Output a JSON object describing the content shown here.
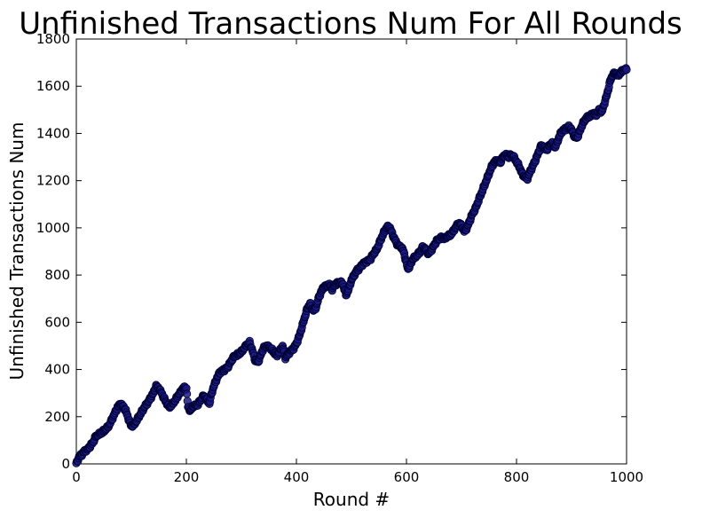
{
  "chart_data": {
    "type": "scatter",
    "title": "Unfinished Transactions Num For All Rounds",
    "xlabel": "Round #",
    "ylabel": "Unfinished Transactions Num",
    "xlim": [
      0,
      1000
    ],
    "ylim": [
      0,
      1800
    ],
    "xticks": [
      0,
      200,
      400,
      600,
      800,
      1000
    ],
    "yticks": [
      0,
      200,
      400,
      600,
      800,
      1000,
      1200,
      1400,
      1600,
      1800
    ],
    "grid": false,
    "marker_color": "#1a1a80",
    "marker_edge_color": "#000033",
    "series": [
      {
        "points": [
          [
            0,
            0
          ],
          [
            5,
            30
          ],
          [
            10,
            40
          ],
          [
            15,
            55
          ],
          [
            20,
            60
          ],
          [
            25,
            75
          ],
          [
            30,
            90
          ],
          [
            35,
            115
          ],
          [
            40,
            125
          ],
          [
            45,
            130
          ],
          [
            50,
            140
          ],
          [
            55,
            150
          ],
          [
            60,
            165
          ],
          [
            65,
            190
          ],
          [
            70,
            215
          ],
          [
            75,
            240
          ],
          [
            80,
            255
          ],
          [
            85,
            245
          ],
          [
            90,
            225
          ],
          [
            95,
            190
          ],
          [
            100,
            160
          ],
          [
            105,
            165
          ],
          [
            110,
            185
          ],
          [
            115,
            205
          ],
          [
            120,
            225
          ],
          [
            125,
            245
          ],
          [
            130,
            260
          ],
          [
            135,
            280
          ],
          [
            140,
            300
          ],
          [
            145,
            330
          ],
          [
            150,
            320
          ],
          [
            155,
            300
          ],
          [
            160,
            275
          ],
          [
            165,
            255
          ],
          [
            170,
            240
          ],
          [
            175,
            255
          ],
          [
            180,
            270
          ],
          [
            185,
            290
          ],
          [
            190,
            305
          ],
          [
            195,
            325
          ],
          [
            200,
            320
          ],
          [
            203,
            240
          ],
          [
            208,
            225
          ],
          [
            212,
            245
          ],
          [
            220,
            250
          ],
          [
            226,
            270
          ],
          [
            232,
            290
          ],
          [
            238,
            270
          ],
          [
            242,
            255
          ],
          [
            246,
            300
          ],
          [
            250,
            330
          ],
          [
            255,
            360
          ],
          [
            260,
            385
          ],
          [
            265,
            395
          ],
          [
            270,
            400
          ],
          [
            275,
            410
          ],
          [
            280,
            430
          ],
          [
            285,
            450
          ],
          [
            290,
            460
          ],
          [
            295,
            465
          ],
          [
            300,
            475
          ],
          [
            305,
            490
          ],
          [
            310,
            505
          ],
          [
            315,
            515
          ],
          [
            320,
            480
          ],
          [
            325,
            440
          ],
          [
            330,
            430
          ],
          [
            335,
            460
          ],
          [
            340,
            490
          ],
          [
            345,
            500
          ],
          [
            350,
            495
          ],
          [
            355,
            485
          ],
          [
            360,
            470
          ],
          [
            365,
            460
          ],
          [
            370,
            480
          ],
          [
            375,
            500
          ],
          [
            380,
            450
          ],
          [
            385,
            465
          ],
          [
            390,
            480
          ],
          [
            395,
            490
          ],
          [
            400,
            510
          ],
          [
            405,
            540
          ],
          [
            410,
            580
          ],
          [
            415,
            620
          ],
          [
            420,
            660
          ],
          [
            425,
            680
          ],
          [
            430,
            650
          ],
          [
            435,
            660
          ],
          [
            440,
            700
          ],
          [
            445,
            730
          ],
          [
            450,
            750
          ],
          [
            455,
            755
          ],
          [
            460,
            760
          ],
          [
            465,
            740
          ],
          [
            470,
            760
          ],
          [
            475,
            765
          ],
          [
            480,
            770
          ],
          [
            485,
            760
          ],
          [
            490,
            715
          ],
          [
            495,
            740
          ],
          [
            500,
            780
          ],
          [
            505,
            800
          ],
          [
            510,
            820
          ],
          [
            515,
            830
          ],
          [
            520,
            845
          ],
          [
            525,
            855
          ],
          [
            530,
            860
          ],
          [
            535,
            870
          ],
          [
            540,
            890
          ],
          [
            545,
            905
          ],
          [
            550,
            930
          ],
          [
            555,
            960
          ],
          [
            560,
            985
          ],
          [
            565,
            1005
          ],
          [
            570,
            1000
          ],
          [
            575,
            970
          ],
          [
            580,
            945
          ],
          [
            585,
            925
          ],
          [
            590,
            920
          ],
          [
            595,
            900
          ],
          [
            600,
            850
          ],
          [
            603,
            825
          ],
          [
            608,
            850
          ],
          [
            612,
            870
          ],
          [
            618,
            880
          ],
          [
            625,
            900
          ],
          [
            630,
            920
          ],
          [
            635,
            910
          ],
          [
            640,
            890
          ],
          [
            645,
            905
          ],
          [
            650,
            925
          ],
          [
            655,
            945
          ],
          [
            660,
            955
          ],
          [
            665,
            960
          ],
          [
            670,
            955
          ],
          [
            675,
            965
          ],
          [
            680,
            970
          ],
          [
            685,
            985
          ],
          [
            690,
            1005
          ],
          [
            695,
            1020
          ],
          [
            700,
            1010
          ],
          [
            705,
            985
          ],
          [
            710,
            1000
          ],
          [
            715,
            1030
          ],
          [
            720,
            1060
          ],
          [
            725,
            1080
          ],
          [
            730,
            1110
          ],
          [
            735,
            1140
          ],
          [
            740,
            1170
          ],
          [
            745,
            1200
          ],
          [
            750,
            1230
          ],
          [
            755,
            1260
          ],
          [
            760,
            1280
          ],
          [
            765,
            1285
          ],
          [
            770,
            1275
          ],
          [
            775,
            1300
          ],
          [
            780,
            1310
          ],
          [
            785,
            1300
          ],
          [
            790,
            1310
          ],
          [
            795,
            1300
          ],
          [
            800,
            1280
          ],
          [
            805,
            1260
          ],
          [
            810,
            1230
          ],
          [
            815,
            1215
          ],
          [
            820,
            1210
          ],
          [
            825,
            1240
          ],
          [
            830,
            1265
          ],
          [
            835,
            1290
          ],
          [
            840,
            1320
          ],
          [
            845,
            1350
          ],
          [
            850,
            1340
          ],
          [
            855,
            1330
          ],
          [
            860,
            1350
          ],
          [
            865,
            1360
          ],
          [
            870,
            1340
          ],
          [
            875,
            1370
          ],
          [
            880,
            1400
          ],
          [
            885,
            1415
          ],
          [
            890,
            1420
          ],
          [
            895,
            1430
          ],
          [
            900,
            1415
          ],
          [
            905,
            1390
          ],
          [
            910,
            1380
          ],
          [
            915,
            1410
          ],
          [
            920,
            1440
          ],
          [
            925,
            1460
          ],
          [
            930,
            1470
          ],
          [
            935,
            1475
          ],
          [
            940,
            1485
          ],
          [
            945,
            1480
          ],
          [
            950,
            1500
          ],
          [
            955,
            1490
          ],
          [
            960,
            1530
          ],
          [
            965,
            1570
          ],
          [
            970,
            1620
          ],
          [
            975,
            1650
          ],
          [
            980,
            1655
          ],
          [
            985,
            1645
          ],
          [
            990,
            1660
          ],
          [
            995,
            1670
          ],
          [
            1000,
            1670
          ]
        ]
      }
    ]
  }
}
